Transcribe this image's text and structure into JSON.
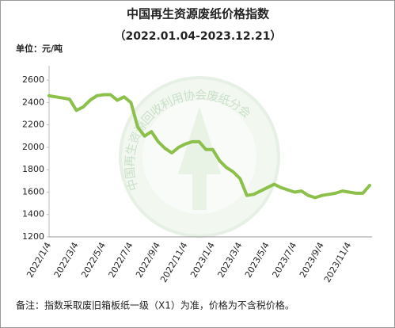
{
  "chart_data": {
    "type": "line",
    "title": "中国再生资源废纸价格指数",
    "subtitle": "（2022.01.04-2023.12.21）",
    "unit_label": "单位：元/吨",
    "footnote": "备注：指数采取废旧箱板纸一级（X1）为准，价格为不含税价格。",
    "watermark": "中国再生资源回收利用协会废纸分会",
    "categories": [
      "2022/1/4",
      null,
      null,
      null,
      "2022/3/4",
      null,
      null,
      null,
      "2022/5/4",
      null,
      null,
      null,
      "2022/7/4",
      null,
      null,
      null,
      "2022/9/4",
      null,
      null,
      null,
      "2022/11/4",
      null,
      null,
      null,
      "2023/1/4",
      null,
      null,
      null,
      "2023/3/4",
      null,
      null,
      null,
      "2023/5/4",
      null,
      null,
      null,
      "2023/7/4",
      null,
      null,
      null,
      "2023/9/4",
      null,
      null,
      null,
      "2023/11/4",
      null,
      null,
      null
    ],
    "series": [
      {
        "color": "#8cc04a",
        "values": [
          2460,
          2450,
          2440,
          2430,
          2330,
          2360,
          2420,
          2460,
          2470,
          2470,
          2420,
          2450,
          2400,
          2180,
          2100,
          2140,
          2050,
          1990,
          1950,
          2000,
          2030,
          2050,
          2050,
          1980,
          1980,
          1880,
          1820,
          1780,
          1720,
          1570,
          1580,
          1610,
          1640,
          1670,
          1640,
          1620,
          1600,
          1610,
          1570,
          1550,
          1570,
          1580,
          1590,
          1610,
          1600,
          1590,
          1590,
          1660
        ]
      }
    ],
    "ylim": [
      1200,
      2700
    ],
    "yticks": [
      1200,
      1400,
      1600,
      1800,
      2000,
      2200,
      2400,
      2600
    ]
  }
}
